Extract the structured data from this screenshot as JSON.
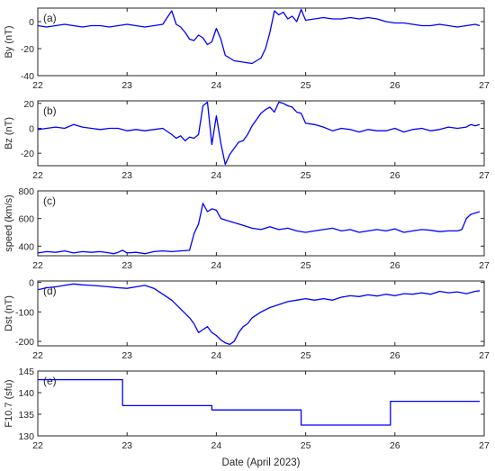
{
  "chart_data": [
    {
      "type": "line",
      "panel_label": "(a)",
      "ylabel": "By (nT)",
      "xlim": [
        22,
        27
      ],
      "ylim": [
        -40,
        10
      ],
      "xticks": [
        "22",
        "23",
        "24",
        "25",
        "26",
        "27"
      ],
      "yticks": [
        "-40",
        "-20",
        "0"
      ],
      "ytick_values": [
        -40,
        -20,
        0
      ],
      "series": [
        {
          "color": "#0000ff",
          "x": [
            22.0,
            22.1,
            22.2,
            22.3,
            22.4,
            22.5,
            22.6,
            22.7,
            22.8,
            22.9,
            23.0,
            23.1,
            23.2,
            23.3,
            23.4,
            23.45,
            23.5,
            23.55,
            23.6,
            23.65,
            23.7,
            23.75,
            23.8,
            23.85,
            23.9,
            23.95,
            24.0,
            24.05,
            24.1,
            24.15,
            24.2,
            24.3,
            24.4,
            24.5,
            24.55,
            24.6,
            24.65,
            24.7,
            24.75,
            24.8,
            24.85,
            24.9,
            24.95,
            25.0,
            25.1,
            25.2,
            25.3,
            25.4,
            25.5,
            25.6,
            25.7,
            25.8,
            25.9,
            26.0,
            26.1,
            26.2,
            26.3,
            26.4,
            26.5,
            26.6,
            26.7,
            26.8,
            26.9,
            26.95
          ],
          "y": [
            -3,
            -4,
            -3,
            -2,
            -3,
            -4,
            -3,
            -3,
            -4,
            -3,
            -2,
            -3,
            -4,
            -3,
            -2,
            3,
            8,
            -2,
            -4,
            -8,
            -13,
            -14,
            -10,
            -12,
            -17,
            -15,
            -5,
            -13,
            -25,
            -27,
            -29,
            -30,
            -31,
            -27,
            -20,
            -8,
            8,
            5,
            7,
            2,
            4,
            0,
            9,
            1,
            2,
            3,
            2,
            2,
            3,
            2,
            3,
            2,
            0,
            -1,
            -1,
            -2,
            -3,
            -3,
            -2,
            -3,
            -4,
            -3,
            -2,
            -3
          ]
        }
      ]
    },
    {
      "type": "line",
      "panel_label": "(b)",
      "ylabel": "Bz (nT)",
      "xlim": [
        22,
        27
      ],
      "ylim": [
        -30,
        22
      ],
      "xticks": [
        "22",
        "23",
        "24",
        "25",
        "26",
        "27"
      ],
      "yticks": [
        "-20",
        "0",
        "20"
      ],
      "ytick_values": [
        -20,
        0,
        20
      ],
      "series": [
        {
          "color": "#0000ff",
          "x": [
            22.0,
            22.1,
            22.2,
            22.3,
            22.4,
            22.5,
            22.6,
            22.7,
            22.8,
            22.9,
            23.0,
            23.1,
            23.2,
            23.3,
            23.4,
            23.5,
            23.55,
            23.6,
            23.65,
            23.7,
            23.75,
            23.8,
            23.85,
            23.9,
            23.95,
            24.0,
            24.05,
            24.1,
            24.15,
            24.2,
            24.25,
            24.3,
            24.35,
            24.4,
            24.5,
            24.55,
            24.6,
            24.65,
            24.7,
            24.75,
            24.8,
            24.85,
            24.9,
            24.95,
            25.0,
            25.1,
            25.2,
            25.3,
            25.4,
            25.5,
            25.6,
            25.7,
            25.8,
            25.9,
            26.0,
            26.1,
            26.2,
            26.3,
            26.4,
            26.5,
            26.6,
            26.7,
            26.8,
            26.85,
            26.9,
            26.95
          ],
          "y": [
            -1,
            0,
            1,
            0,
            3,
            1,
            0,
            -1,
            0,
            0,
            -2,
            -1,
            -2,
            -1,
            0,
            -5,
            -8,
            -6,
            -10,
            -7,
            -8,
            -5,
            18,
            21,
            -13,
            10,
            -12,
            -29,
            -21,
            -16,
            -11,
            -10,
            -5,
            2,
            12,
            15,
            17,
            13,
            21,
            20,
            18,
            17,
            13,
            12,
            4,
            3,
            1,
            -2,
            0,
            -1,
            -3,
            -1,
            -2,
            -2,
            0,
            -3,
            -1,
            0,
            -2,
            -1,
            1,
            0,
            1,
            3,
            2,
            3
          ]
        }
      ]
    },
    {
      "type": "line",
      "panel_label": "(c)",
      "ylabel": "speed (km/s)",
      "xlim": [
        22,
        27
      ],
      "ylim": [
        330,
        800
      ],
      "xticks": [
        "22",
        "23",
        "24",
        "25",
        "26",
        "27"
      ],
      "yticks": [
        "400",
        "600",
        "800"
      ],
      "ytick_values": [
        400,
        600,
        800
      ],
      "series": [
        {
          "color": "#0000ff",
          "x": [
            22.0,
            22.1,
            22.2,
            22.3,
            22.4,
            22.5,
            22.6,
            22.7,
            22.8,
            22.85,
            22.9,
            22.95,
            23.0,
            23.1,
            23.2,
            23.3,
            23.4,
            23.5,
            23.6,
            23.7,
            23.75,
            23.8,
            23.85,
            23.9,
            23.95,
            24.0,
            24.05,
            24.1,
            24.2,
            24.3,
            24.4,
            24.5,
            24.6,
            24.7,
            24.8,
            24.9,
            25.0,
            25.1,
            25.2,
            25.3,
            25.4,
            25.5,
            25.6,
            25.7,
            25.8,
            25.9,
            26.0,
            26.1,
            26.2,
            26.3,
            26.4,
            26.5,
            26.6,
            26.7,
            26.75,
            26.8,
            26.85,
            26.9,
            26.95
          ],
          "y": [
            350,
            360,
            355,
            365,
            350,
            360,
            355,
            360,
            350,
            345,
            355,
            370,
            350,
            355,
            345,
            360,
            365,
            360,
            365,
            370,
            490,
            560,
            710,
            650,
            670,
            660,
            600,
            590,
            570,
            550,
            530,
            520,
            540,
            520,
            530,
            510,
            500,
            510,
            520,
            530,
            510,
            520,
            500,
            510,
            520,
            510,
            525,
            500,
            510,
            520,
            515,
            505,
            510,
            510,
            520,
            600,
            630,
            640,
            650
          ]
        }
      ]
    },
    {
      "type": "line",
      "panel_label": "(d)",
      "ylabel": "Dst (nT)",
      "xlim": [
        22,
        27
      ],
      "ylim": [
        -215,
        5
      ],
      "xticks": [
        "22",
        "23",
        "24",
        "25",
        "26",
        "27"
      ],
      "yticks": [
        "-200",
        "-100",
        "0"
      ],
      "ytick_values": [
        -200,
        -100,
        0
      ],
      "series": [
        {
          "color": "#0000ff",
          "x": [
            22.0,
            22.1,
            22.2,
            22.3,
            22.4,
            22.5,
            22.6,
            22.7,
            22.8,
            22.9,
            23.0,
            23.1,
            23.2,
            23.3,
            23.4,
            23.5,
            23.6,
            23.7,
            23.75,
            23.8,
            23.85,
            23.9,
            23.95,
            24.0,
            24.05,
            24.1,
            24.15,
            24.2,
            24.25,
            24.3,
            24.35,
            24.4,
            24.5,
            24.6,
            24.7,
            24.8,
            24.9,
            25.0,
            25.1,
            25.2,
            25.3,
            25.4,
            25.5,
            25.6,
            25.7,
            25.8,
            25.9,
            26.0,
            26.1,
            26.2,
            26.3,
            26.4,
            26.5,
            26.6,
            26.7,
            26.8,
            26.9,
            26.95
          ],
          "y": [
            -25,
            -18,
            -15,
            -10,
            -5,
            -8,
            -10,
            -12,
            -15,
            -18,
            -20,
            -15,
            -10,
            -20,
            -40,
            -60,
            -90,
            -120,
            -140,
            -170,
            -160,
            -150,
            -170,
            -180,
            -195,
            -205,
            -210,
            -200,
            -170,
            -150,
            -140,
            -120,
            -100,
            -85,
            -75,
            -65,
            -60,
            -55,
            -60,
            -55,
            -60,
            -50,
            -45,
            -48,
            -42,
            -46,
            -40,
            -45,
            -38,
            -40,
            -35,
            -40,
            -30,
            -35,
            -32,
            -38,
            -30,
            -28
          ]
        }
      ]
    },
    {
      "type": "line",
      "panel_label": "(e)",
      "ylabel": "F10.7 (sfu)",
      "xlabel": "Date (April 2023)",
      "xlim": [
        22,
        27
      ],
      "ylim": [
        130,
        145
      ],
      "xticks": [
        "22",
        "23",
        "24",
        "25",
        "26",
        "27"
      ],
      "yticks": [
        "130",
        "135",
        "140",
        "145"
      ],
      "ytick_values": [
        130,
        135,
        140,
        145
      ],
      "series": [
        {
          "color": "#0000ff",
          "x": [
            22.0,
            22.95,
            22.95,
            23.95,
            23.95,
            24.95,
            24.95,
            25.95,
            25.95,
            26.95
          ],
          "y": [
            143,
            143,
            137,
            137,
            136,
            136,
            132.5,
            132.5,
            138,
            138
          ]
        }
      ]
    }
  ]
}
